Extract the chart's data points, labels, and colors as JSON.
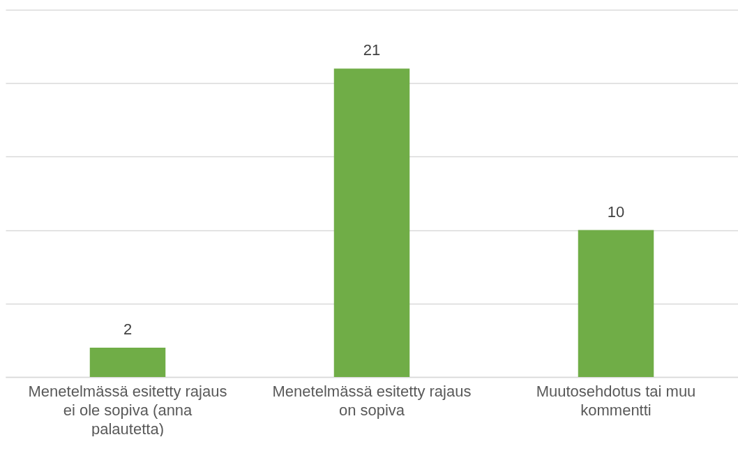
{
  "chart_data": {
    "type": "bar",
    "categories": [
      "Menetelmässä esitetty rajaus ei ole sopiva (anna palautetta)",
      "Menetelmässä esitetty rajaus on sopiva",
      "Muutosehdotus tai muu kommentti"
    ],
    "values": [
      2,
      21,
      10
    ],
    "color": "#70ad47",
    "data_labels": true,
    "ylim": [
      0,
      25
    ],
    "yticks": [
      0,
      5,
      10,
      15,
      20,
      25
    ],
    "tick_labels": "x",
    "grid": "y"
  }
}
